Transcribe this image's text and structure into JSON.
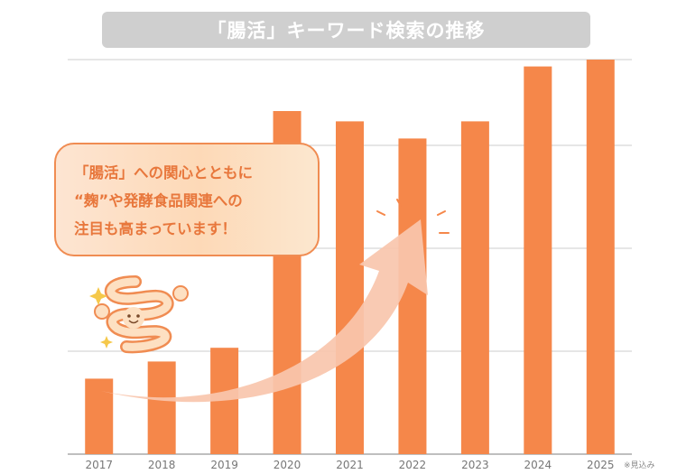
{
  "title": "「腸活」キーワード検索の推移",
  "callout": {
    "line1": "「腸活」への関心とともに",
    "line2": "“麹”や発酵食品関連への",
    "line3": "注目も高まっています！"
  },
  "note": "※見込み",
  "colors": {
    "bar": "#f5874a",
    "title_bg": "#cfcfcf",
    "callout_border": "#f08c52",
    "callout_text": "#e8773c",
    "arrow": "#f9c5ad",
    "grid": "#cccccc"
  },
  "chart_data": {
    "type": "bar",
    "categories": [
      "2017",
      "2018",
      "2019",
      "2020",
      "2021",
      "2022",
      "2023",
      "2024",
      "2025"
    ],
    "values": [
      22,
      27,
      31,
      100,
      97,
      92,
      97,
      113,
      115
    ],
    "ylim": [
      0,
      115
    ],
    "grid": true,
    "title": "「腸活」キーワード検索の推移",
    "xlabel": "",
    "ylabel": ""
  }
}
